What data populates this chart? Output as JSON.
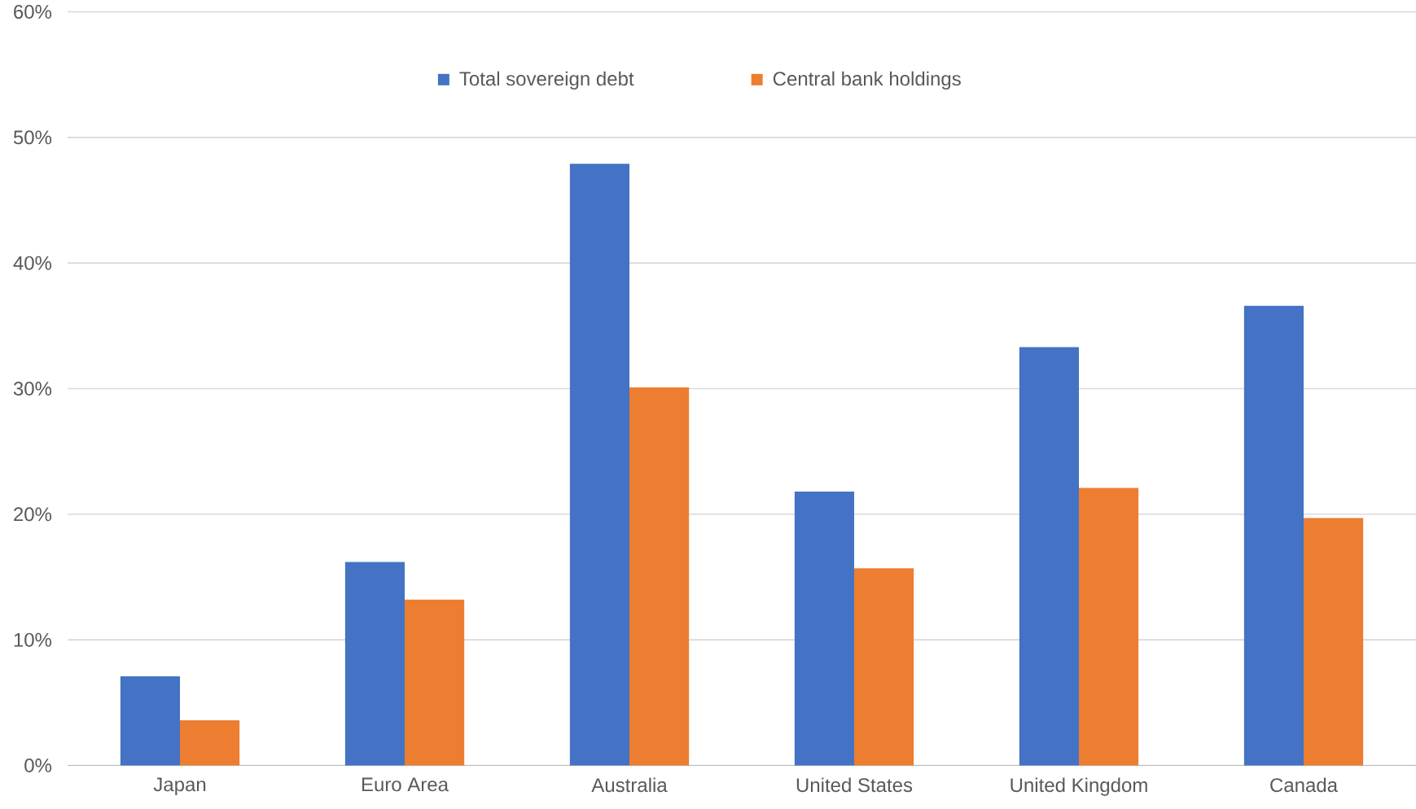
{
  "chart_data": {
    "type": "bar",
    "categories": [
      "Japan",
      "Euro Area",
      "Australia",
      "United States",
      "United Kingdom",
      "Canada"
    ],
    "series": [
      {
        "name": "Total sovereign debt",
        "color": "#4472c4",
        "values": [
          7.1,
          16.2,
          47.9,
          21.8,
          33.3,
          36.6
        ]
      },
      {
        "name": "Central bank holdings",
        "color": "#ed7d31",
        "values": [
          3.6,
          13.2,
          30.1,
          15.7,
          22.1,
          19.7
        ]
      }
    ],
    "ylim": [
      0,
      60
    ],
    "yticks": [
      {
        "value": 0,
        "label": "0%"
      },
      {
        "value": 10,
        "label": "10%"
      },
      {
        "value": 20,
        "label": "20%"
      },
      {
        "value": 30,
        "label": "30%"
      },
      {
        "value": 40,
        "label": "40%"
      },
      {
        "value": 50,
        "label": "50%"
      },
      {
        "value": 60,
        "label": "60%"
      }
    ],
    "grid": "y",
    "legend": "top"
  }
}
